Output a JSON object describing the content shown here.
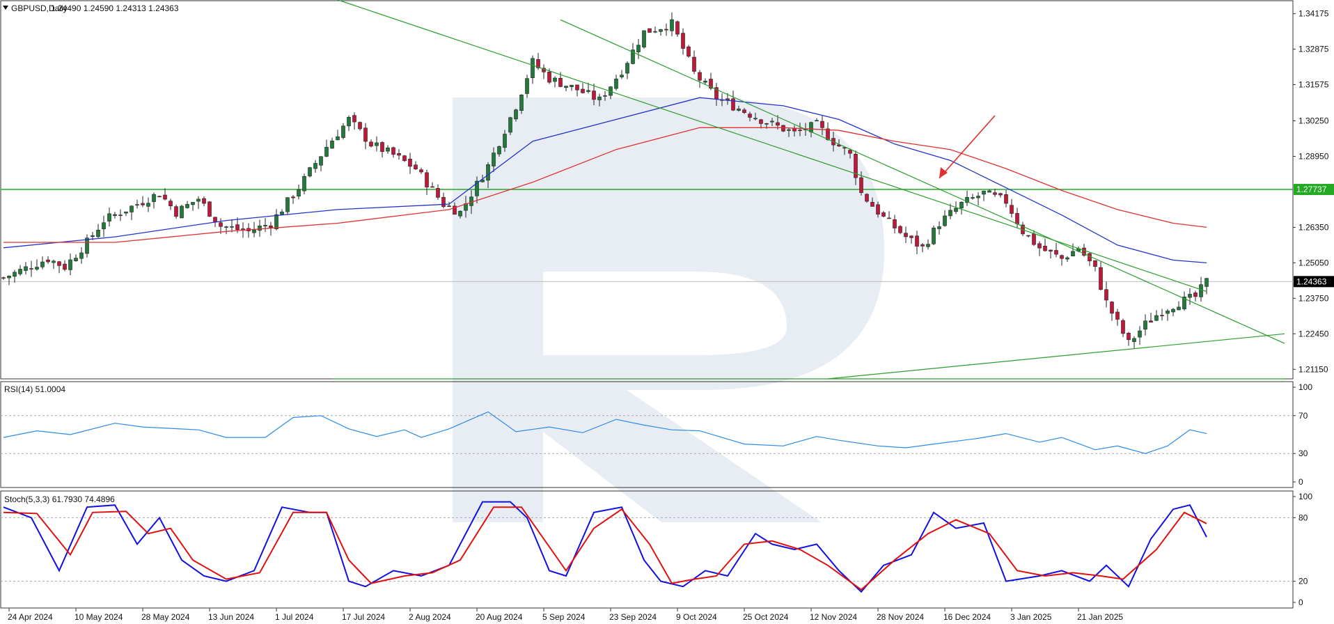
{
  "chart_data": [
    {
      "type": "candlestick",
      "title": "GBPUSD,Daily",
      "ohlc_label": "1.24490 1.24590 1.24313 1.24363",
      "x_tick_labels": [
        "24 Apr 2024",
        "10 May 2024",
        "28 May 2024",
        "13 Jun 2024",
        "1 Jul 2024",
        "17 Jul 2024",
        "2 Aug 2024",
        "20 Aug 2024",
        "5 Sep 2024",
        "23 Sep 2024",
        "9 Oct 2024",
        "25 Oct 2024",
        "12 Nov 2024",
        "28 Nov 2024",
        "16 Dec 2024",
        "3 Jan 2025",
        "21 Jan 2025"
      ],
      "y_tick_labels": [
        "1.34175",
        "1.32875",
        "1.31575",
        "1.30250",
        "1.28950",
        "1.26350",
        "1.25050",
        "1.23750",
        "1.22450",
        "1.21150"
      ],
      "y_tick_values": [
        1.34175,
        1.32875,
        1.31575,
        1.3025,
        1.2895,
        1.2635,
        1.2505,
        1.2375,
        1.2245,
        1.2115
      ],
      "ylim": [
        1.208,
        1.3465
      ],
      "horizontal_level": {
        "value": 1.27737,
        "label": "1.27737",
        "color": "#22aa22"
      },
      "current_price": {
        "value": 1.24363,
        "label": "1.24363"
      },
      "close_path": [
        {
          "x": 0,
          "y": 1.245
        },
        {
          "x": 8,
          "y": 1.252
        },
        {
          "x": 11,
          "y": 1.249
        },
        {
          "x": 15,
          "y": 1.258
        },
        {
          "x": 18,
          "y": 1.266
        },
        {
          "x": 24,
          "y": 1.272
        },
        {
          "x": 28,
          "y": 1.276
        },
        {
          "x": 31,
          "y": 1.269
        },
        {
          "x": 35,
          "y": 1.274
        },
        {
          "x": 39,
          "y": 1.264
        },
        {
          "x": 44,
          "y": 1.262
        },
        {
          "x": 48,
          "y": 1.265
        },
        {
          "x": 53,
          "y": 1.278
        },
        {
          "x": 58,
          "y": 1.293
        },
        {
          "x": 62,
          "y": 1.303
        },
        {
          "x": 66,
          "y": 1.294
        },
        {
          "x": 70,
          "y": 1.29
        },
        {
          "x": 74,
          "y": 1.285
        },
        {
          "x": 79,
          "y": 1.272
        },
        {
          "x": 82,
          "y": 1.269
        },
        {
          "x": 87,
          "y": 1.286
        },
        {
          "x": 92,
          "y": 1.308
        },
        {
          "x": 95,
          "y": 1.324
        },
        {
          "x": 98,
          "y": 1.318
        },
        {
          "x": 103,
          "y": 1.314
        },
        {
          "x": 107,
          "y": 1.31
        },
        {
          "x": 111,
          "y": 1.321
        },
        {
          "x": 115,
          "y": 1.335
        },
        {
          "x": 120,
          "y": 1.338
        },
        {
          "x": 124,
          "y": 1.32
        },
        {
          "x": 128,
          "y": 1.311
        },
        {
          "x": 133,
          "y": 1.306
        },
        {
          "x": 137,
          "y": 1.302
        },
        {
          "x": 142,
          "y": 1.298
        },
        {
          "x": 146,
          "y": 1.301
        },
        {
          "x": 149,
          "y": 1.295
        },
        {
          "x": 152,
          "y": 1.29
        },
        {
          "x": 154,
          "y": 1.276
        },
        {
          "x": 158,
          "y": 1.267
        },
        {
          "x": 162,
          "y": 1.26
        },
        {
          "x": 165,
          "y": 1.256
        },
        {
          "x": 168,
          "y": 1.265
        },
        {
          "x": 172,
          "y": 1.272
        },
        {
          "x": 176,
          "y": 1.276
        },
        {
          "x": 180,
          "y": 1.273
        },
        {
          "x": 183,
          "y": 1.262
        },
        {
          "x": 186,
          "y": 1.256
        },
        {
          "x": 190,
          "y": 1.252
        },
        {
          "x": 193,
          "y": 1.256
        },
        {
          "x": 196,
          "y": 1.248
        },
        {
          "x": 198,
          "y": 1.236
        },
        {
          "x": 202,
          "y": 1.221
        },
        {
          "x": 205,
          "y": 1.228
        },
        {
          "x": 208,
          "y": 1.233
        },
        {
          "x": 211,
          "y": 1.236
        },
        {
          "x": 214,
          "y": 1.238
        },
        {
          "x": 216,
          "y": 1.2436
        }
      ],
      "sma_blue": [
        [
          0,
          1.256
        ],
        [
          20,
          1.26
        ],
        [
          40,
          1.266
        ],
        [
          60,
          1.27
        ],
        [
          80,
          1.272
        ],
        [
          95,
          1.295
        ],
        [
          110,
          1.303
        ],
        [
          125,
          1.311
        ],
        [
          140,
          1.308
        ],
        [
          150,
          1.303
        ],
        [
          160,
          1.294
        ],
        [
          170,
          1.288
        ],
        [
          180,
          1.278
        ],
        [
          190,
          1.268
        ],
        [
          200,
          1.257
        ],
        [
          210,
          1.2515
        ],
        [
          216,
          1.2505
        ]
      ],
      "sma_red": [
        [
          0,
          1.258
        ],
        [
          20,
          1.258
        ],
        [
          40,
          1.262
        ],
        [
          60,
          1.265
        ],
        [
          80,
          1.27
        ],
        [
          95,
          1.28
        ],
        [
          110,
          1.292
        ],
        [
          125,
          1.3
        ],
        [
          140,
          1.3
        ],
        [
          150,
          1.299
        ],
        [
          160,
          1.295
        ],
        [
          170,
          1.292
        ],
        [
          180,
          1.285
        ],
        [
          190,
          1.277
        ],
        [
          200,
          1.27
        ],
        [
          210,
          1.265
        ],
        [
          216,
          1.2635
        ]
      ],
      "trend_lines": [
        [
          59,
          1.3475,
          216,
          1.24
        ],
        [
          100,
          1.3395,
          230,
          1.221
        ],
        [
          148,
          1.208,
          230,
          1.2245
        ],
        [
          59,
          1.208,
          230,
          1.208
        ]
      ],
      "arrow": {
        "color": "#e03030"
      }
    },
    {
      "type": "line",
      "title": "RSI(14) 51.0004",
      "ylim": [
        0,
        100
      ],
      "levels": [
        30,
        70
      ],
      "y_tick_labels": [
        "100",
        "70",
        "30",
        "0"
      ],
      "y_tick_values": [
        100,
        70,
        30,
        0
      ],
      "series": [
        {
          "color": "#2b8be8",
          "values": [
            [
              0,
              47
            ],
            [
              6,
              54
            ],
            [
              12,
              50
            ],
            [
              20,
              62
            ],
            [
              25,
              58
            ],
            [
              35,
              55
            ],
            [
              40,
              47
            ],
            [
              47,
              47
            ],
            [
              52,
              68
            ],
            [
              57,
              70
            ],
            [
              62,
              56
            ],
            [
              67,
              48
            ],
            [
              72,
              55
            ],
            [
              75,
              47
            ],
            [
              80,
              56
            ],
            [
              87,
              74
            ],
            [
              92,
              53
            ],
            [
              98,
              58
            ],
            [
              104,
              52
            ],
            [
              110,
              66
            ],
            [
              115,
              60
            ],
            [
              120,
              55
            ],
            [
              125,
              54
            ],
            [
              133,
              40
            ],
            [
              140,
              38
            ],
            [
              146,
              48
            ],
            [
              150,
              44
            ],
            [
              157,
              38
            ],
            [
              162,
              36
            ],
            [
              167,
              40
            ],
            [
              175,
              46
            ],
            [
              180,
              51
            ],
            [
              186,
              42
            ],
            [
              190,
              47
            ],
            [
              196,
              34
            ],
            [
              200,
              38
            ],
            [
              205,
              30
            ],
            [
              209,
              38
            ],
            [
              213,
              55
            ],
            [
              216,
              51
            ]
          ]
        }
      ]
    },
    {
      "type": "line",
      "title": "Stoch(5,3,3) 61.7930 74.4896",
      "ylim": [
        0,
        100
      ],
      "levels": [
        20,
        80
      ],
      "y_tick_labels": [
        "100",
        "80",
        "20",
        "0"
      ],
      "y_tick_values": [
        100,
        80,
        20,
        0
      ],
      "series": [
        {
          "color": "#1010e0",
          "values": [
            [
              0,
              90
            ],
            [
              5,
              80
            ],
            [
              10,
              30
            ],
            [
              15,
              90
            ],
            [
              20,
              92
            ],
            [
              24,
              55
            ],
            [
              28,
              80
            ],
            [
              32,
              40
            ],
            [
              36,
              25
            ],
            [
              40,
              20
            ],
            [
              45,
              30
            ],
            [
              50,
              90
            ],
            [
              55,
              85
            ],
            [
              58,
              85
            ],
            [
              62,
              20
            ],
            [
              65,
              15
            ],
            [
              70,
              30
            ],
            [
              75,
              25
            ],
            [
              80,
              35
            ],
            [
              86,
              95
            ],
            [
              91,
              95
            ],
            [
              94,
              80
            ],
            [
              98,
              30
            ],
            [
              101,
              25
            ],
            [
              106,
              85
            ],
            [
              111,
              90
            ],
            [
              115,
              40
            ],
            [
              118,
              20
            ],
            [
              122,
              15
            ],
            [
              126,
              30
            ],
            [
              130,
              25
            ],
            [
              135,
              65
            ],
            [
              138,
              55
            ],
            [
              142,
              50
            ],
            [
              146,
              55
            ],
            [
              150,
              30
            ],
            [
              154,
              10
            ],
            [
              158,
              35
            ],
            [
              163,
              45
            ],
            [
              167,
              85
            ],
            [
              171,
              70
            ],
            [
              176,
              75
            ],
            [
              180,
              20
            ],
            [
              186,
              25
            ],
            [
              190,
              30
            ],
            [
              195,
              20
            ],
            [
              198,
              35
            ],
            [
              202,
              15
            ],
            [
              206,
              60
            ],
            [
              210,
              88
            ],
            [
              213,
              92
            ],
            [
              216,
              61.8
            ]
          ]
        },
        {
          "color": "#e01010",
          "values": [
            [
              0,
              85
            ],
            [
              6,
              84
            ],
            [
              12,
              45
            ],
            [
              16,
              85
            ],
            [
              22,
              86
            ],
            [
              26,
              65
            ],
            [
              30,
              70
            ],
            [
              34,
              40
            ],
            [
              40,
              22
            ],
            [
              46,
              28
            ],
            [
              52,
              85
            ],
            [
              58,
              85
            ],
            [
              62,
              40
            ],
            [
              66,
              18
            ],
            [
              72,
              25
            ],
            [
              77,
              28
            ],
            [
              82,
              40
            ],
            [
              88,
              90
            ],
            [
              93,
              90
            ],
            [
              97,
              60
            ],
            [
              101,
              30
            ],
            [
              106,
              70
            ],
            [
              111,
              88
            ],
            [
              116,
              55
            ],
            [
              120,
              18
            ],
            [
              124,
              22
            ],
            [
              128,
              25
            ],
            [
              133,
              55
            ],
            [
              138,
              58
            ],
            [
              143,
              50
            ],
            [
              148,
              35
            ],
            [
              154,
              12
            ],
            [
              160,
              40
            ],
            [
              166,
              65
            ],
            [
              171,
              78
            ],
            [
              177,
              65
            ],
            [
              182,
              30
            ],
            [
              187,
              25
            ],
            [
              192,
              28
            ],
            [
              197,
              25
            ],
            [
              201,
              22
            ],
            [
              207,
              50
            ],
            [
              212,
              85
            ],
            [
              216,
              74.5
            ]
          ]
        }
      ]
    }
  ]
}
